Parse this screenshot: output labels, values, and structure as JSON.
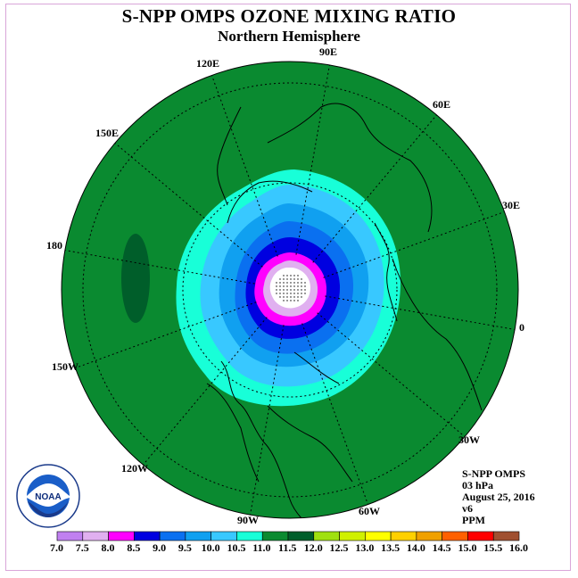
{
  "title": "S-NPP OMPS OZONE MIXING RATIO",
  "subtitle": "Northern Hemisphere",
  "longitude_labels": [
    "90E",
    "60E",
    "30E",
    "0",
    "30W",
    "60W",
    "90W",
    "120W",
    "150W",
    "180",
    "150E",
    "120E"
  ],
  "info": {
    "instrument": "S-NPP OMPS",
    "level": "03 hPa",
    "date": "August 25, 2016",
    "version": "v6",
    "units": "PPM"
  },
  "logo": {
    "icon": "noaa-logo",
    "text": "NOAA"
  },
  "colorbar": {
    "ticks": [
      "7.0",
      "7.5",
      "8.0",
      "8.5",
      "9.0",
      "9.5",
      "10.0",
      "10.5",
      "11.0",
      "11.5",
      "12.0",
      "12.5",
      "13.0",
      "13.5",
      "14.0",
      "14.5",
      "15.0",
      "15.5",
      "16.0"
    ],
    "colors": [
      "#c080f0",
      "#e0b0f0",
      "#ff00ff",
      "#0000e0",
      "#0a70f0",
      "#10a0f0",
      "#38c8ff",
      "#18ffd8",
      "#0a8a30",
      "#005e2a",
      "#a0e010",
      "#d0f000",
      "#ffff00",
      "#ffd000",
      "#f0a000",
      "#ff6000",
      "#ff0000",
      "#a05030"
    ]
  },
  "field": {
    "levels_ppm": [
      11.0,
      10.5,
      10.0,
      9.5,
      9.0,
      8.5,
      8.0,
      7.5
    ],
    "colors": {
      "background": "#0a8a30",
      "high_patch": "#005e2a",
      "continent": "#000000",
      "pole_dots": "#000000"
    }
  }
}
